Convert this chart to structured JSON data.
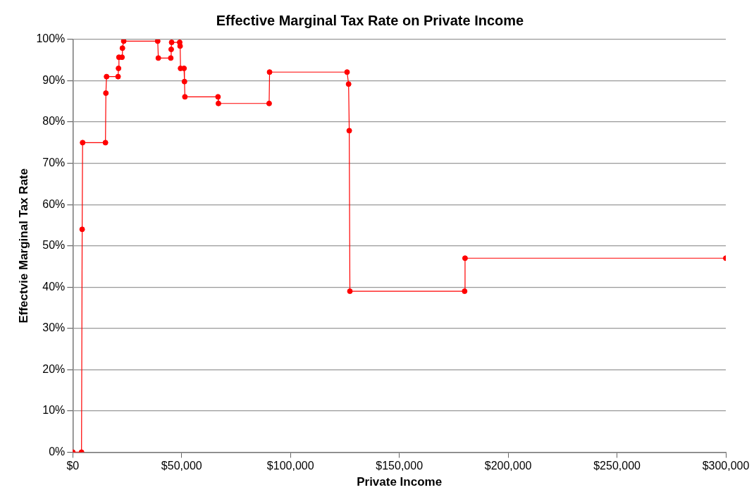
{
  "chart_data": {
    "type": "line",
    "title": "Effective Marginal Tax Rate on Private Income",
    "xlabel": "Private Income",
    "ylabel": "Effectvie Marginal Tax Rate",
    "x": [
      0,
      4000,
      4300,
      4500,
      15000,
      15200,
      15500,
      20800,
      21000,
      21200,
      22600,
      22800,
      23400,
      39000,
      39300,
      45000,
      45200,
      45400,
      49100,
      49300,
      49500,
      51100,
      51300,
      51500,
      66700,
      66900,
      90200,
      90400,
      126000,
      126700,
      127000,
      127300,
      180000,
      180200,
      300000
    ],
    "series": [
      {
        "color": "#ff0000",
        "values": [
          0,
          0,
          54,
          75,
          75,
          87,
          91,
          91,
          93,
          95.7,
          95.7,
          97.9,
          99.6,
          99.6,
          95.5,
          95.5,
          97.6,
          99.3,
          99.3,
          98.4,
          93,
          93,
          89.8,
          86.1,
          86.1,
          84.5,
          84.5,
          92.1,
          92.1,
          89.2,
          77.9,
          39,
          39,
          47,
          47
        ]
      }
    ],
    "xlim": [
      0,
      300000
    ],
    "ylim": [
      0,
      100
    ],
    "xticks": [
      {
        "value": 0,
        "label": "$0"
      },
      {
        "value": 50000,
        "label": "$50,000"
      },
      {
        "value": 100000,
        "label": "$100,000"
      },
      {
        "value": 150000,
        "label": "$150,000"
      },
      {
        "value": 200000,
        "label": "$200,000"
      },
      {
        "value": 250000,
        "label": "$250,000"
      },
      {
        "value": 300000,
        "label": "$300,000"
      }
    ],
    "yticks": [
      {
        "value": 0,
        "label": "0%"
      },
      {
        "value": 10,
        "label": "10%"
      },
      {
        "value": 20,
        "label": "20%"
      },
      {
        "value": 30,
        "label": "30%"
      },
      {
        "value": 40,
        "label": "40%"
      },
      {
        "value": 50,
        "label": "50%"
      },
      {
        "value": 60,
        "label": "60%"
      },
      {
        "value": 70,
        "label": "70%"
      },
      {
        "value": 80,
        "label": "80%"
      },
      {
        "value": 90,
        "label": "90%"
      },
      {
        "value": 100,
        "label": "100%"
      }
    ],
    "grid": "y",
    "legend": false,
    "marker": "circle",
    "line_style": "solid"
  }
}
